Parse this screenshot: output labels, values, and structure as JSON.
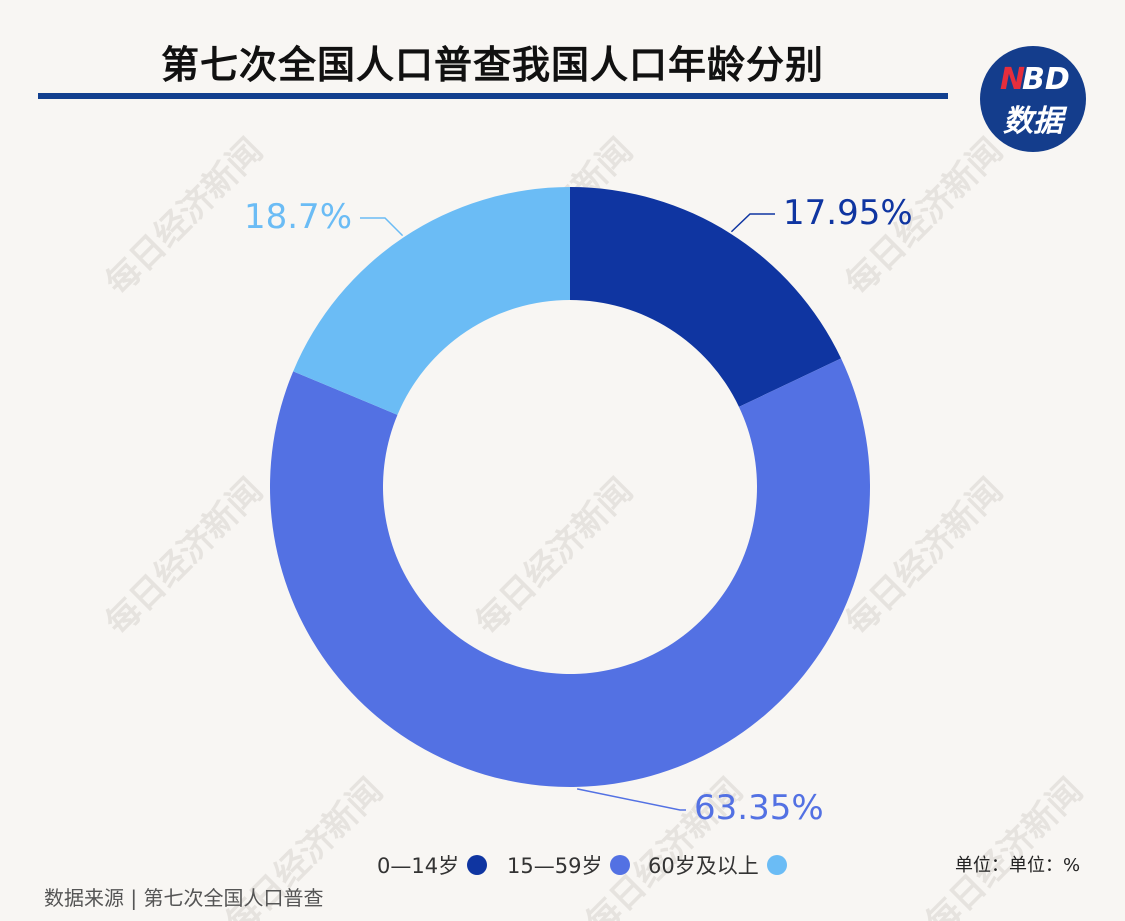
{
  "title": "第七次全国人口普查我国人口年龄分别",
  "logo": {
    "top_n": "N",
    "top_bd": "BD",
    "bottom": "数据"
  },
  "watermark_text": "每日经济新闻",
  "unit": "单位：单位：%",
  "source": "数据来源 | 第七次全国人口普查",
  "colors": {
    "title_rule": "#12408f",
    "series_0_14": "#0f35a1",
    "series_15_59": "#5371e3",
    "series_60_plus": "#6bbcf5",
    "background": "#f8f6f3"
  },
  "chart_data": {
    "type": "pie",
    "style": "donut",
    "title": "第七次全国人口普查我国人口年龄分别",
    "unit": "%",
    "categories": [
      "0—14岁",
      "15—59岁",
      "60岁及以上"
    ],
    "values": [
      17.95,
      63.35,
      18.7
    ],
    "value_labels": [
      "17.95%",
      "63.35%",
      "18.7%"
    ],
    "colors": [
      "#0f35a1",
      "#5371e3",
      "#6bbcf5"
    ],
    "legend_position": "bottom-center",
    "start_angle": "12 o'clock",
    "direction": "clockwise"
  }
}
